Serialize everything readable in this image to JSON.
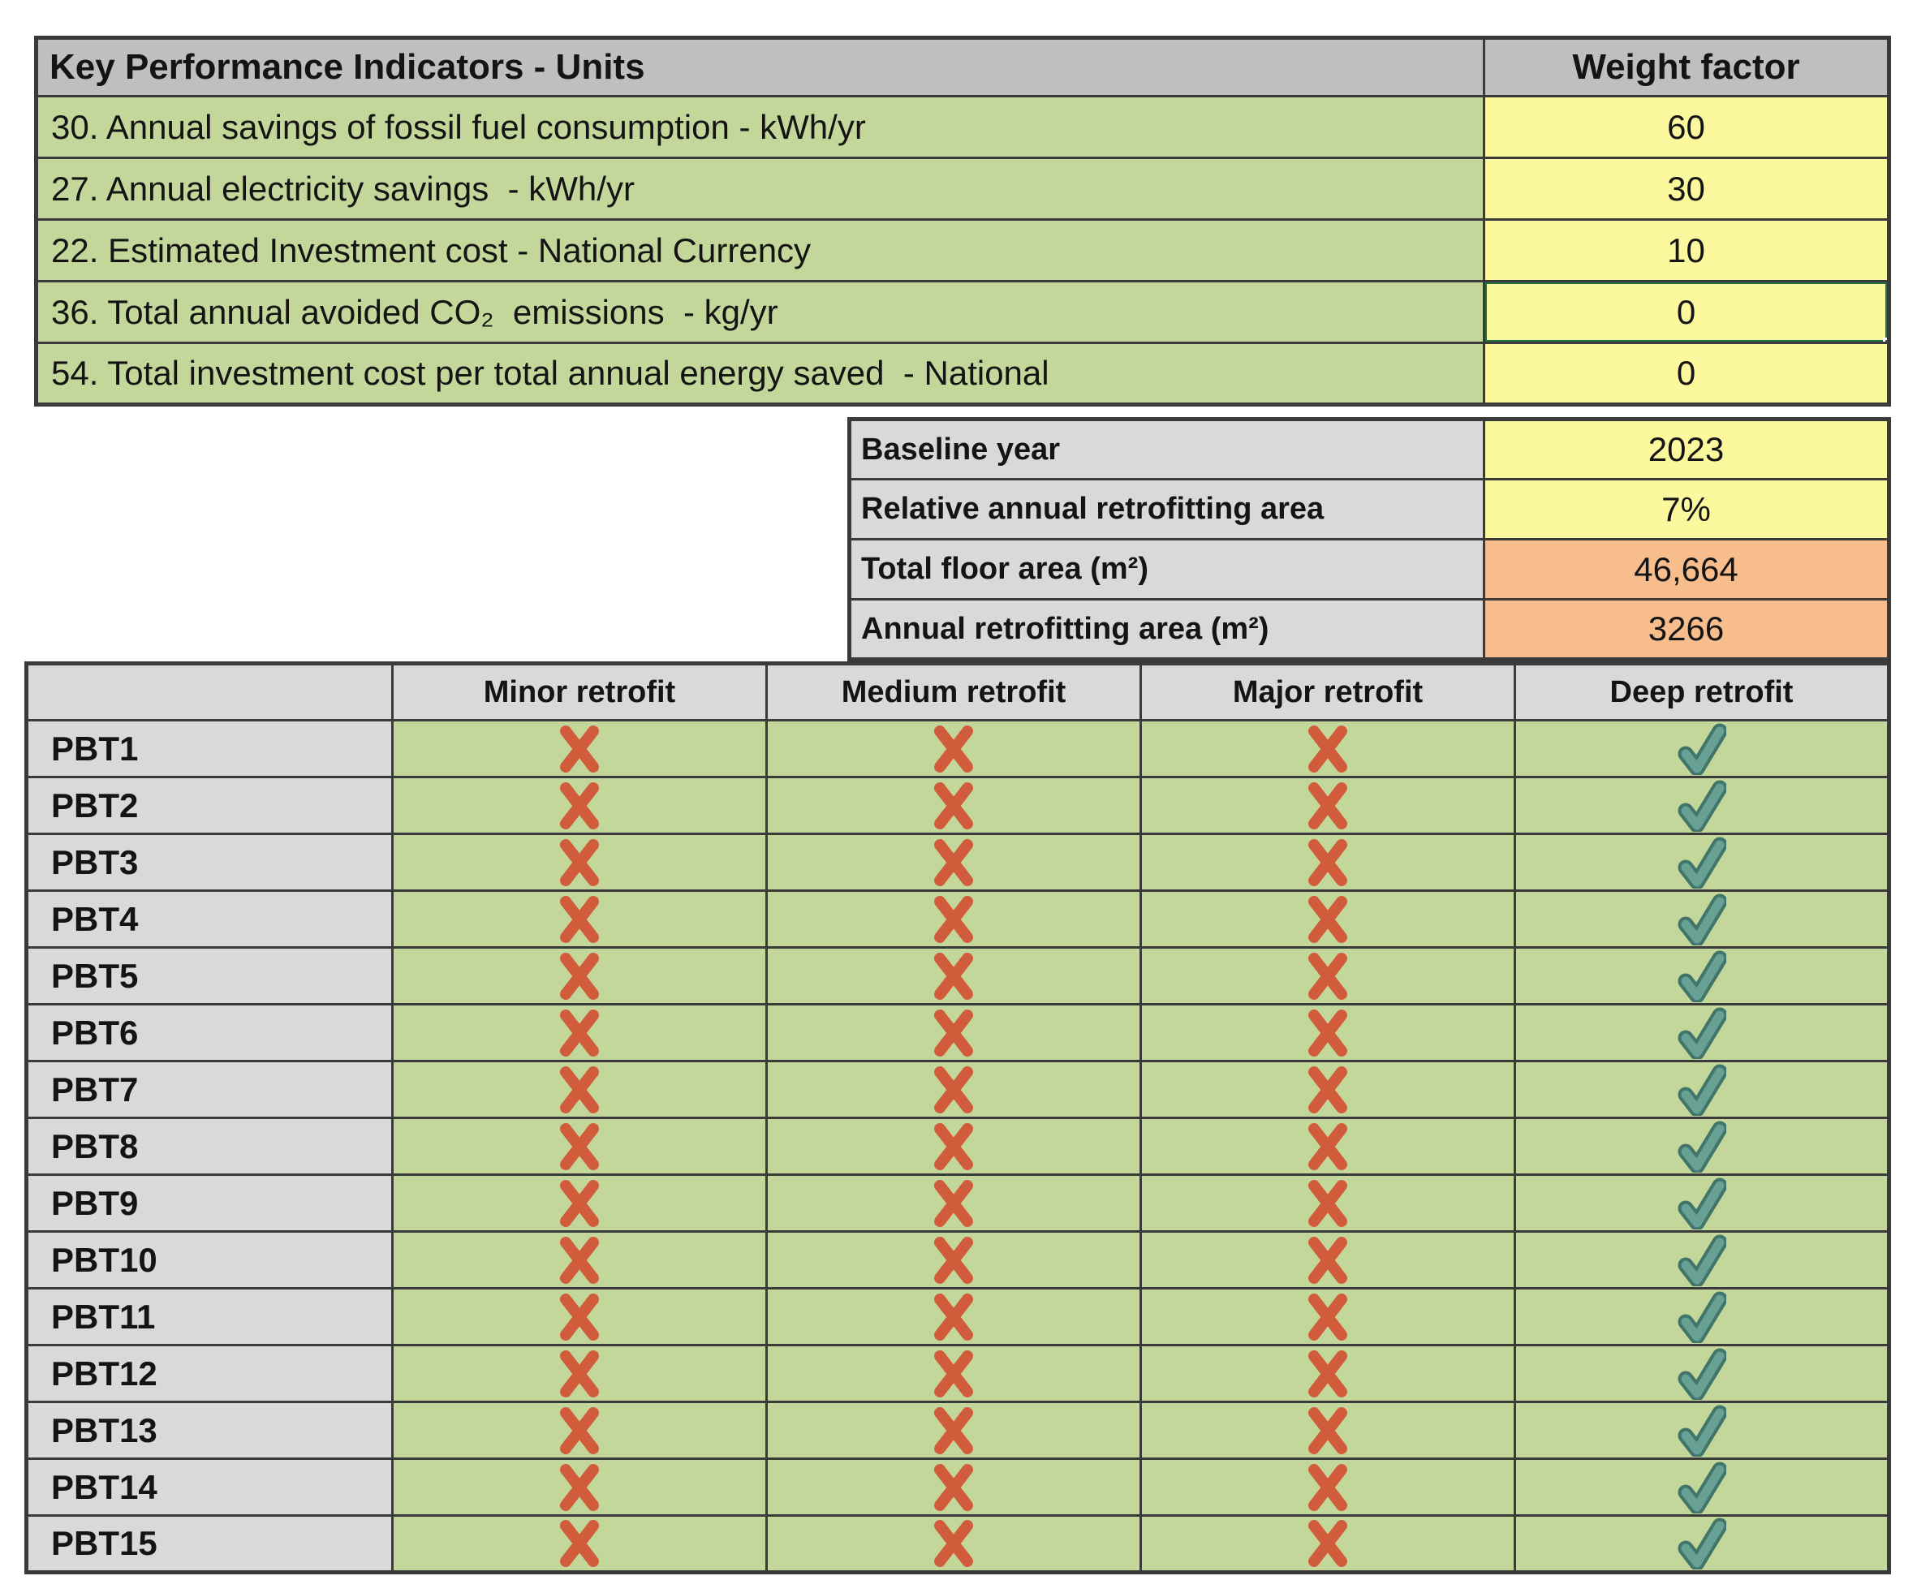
{
  "colors": {
    "header_gray": "#bfbfbf",
    "label_gray": "#d9d9d9",
    "cell_green": "#c4d79b",
    "cell_yellow": "#fbf89e",
    "cell_orange": "#f8bd8c",
    "grid_border": "#3a3a3a",
    "selection_green": "#1e7145",
    "cross_red": "#d15c3c",
    "check_teal": "#68a093",
    "check_teal_dark": "#41756a"
  },
  "kpi_table": {
    "title": "Key Performance Indicators - Units",
    "weight_header": "Weight factor",
    "rows": [
      {
        "label": "30. Annual savings of fossil fuel consumption - kWh/yr",
        "weight": "60",
        "selected": false
      },
      {
        "label": "27. Annual electricity savings  - kWh/yr",
        "weight": "30",
        "selected": false
      },
      {
        "label": "22. Estimated Investment cost - National Currency",
        "weight": "10",
        "selected": false
      },
      {
        "label": "36. Total annual avoided CO₂  emissions  - kg/yr",
        "weight": "0",
        "selected": true
      },
      {
        "label": "54. Total investment cost per total annual energy saved  - National",
        "weight": "0",
        "selected": false
      }
    ]
  },
  "params_table": {
    "rows": [
      {
        "label": "Baseline year",
        "value": "2023",
        "fill": "yellow"
      },
      {
        "label": "Relative annual retrofitting area",
        "value": "7%",
        "fill": "yellow"
      },
      {
        "label": "Total floor area (m²)",
        "value": "46,664",
        "fill": "orange"
      },
      {
        "label": "Annual retrofitting area (m²)",
        "value": "3266",
        "fill": "orange"
      }
    ]
  },
  "matrix_table": {
    "corner_label": "",
    "columns": [
      "Minor retrofit",
      "Medium retrofit",
      "Major retrofit",
      "Deep retrofit"
    ],
    "icons": {
      "cross": "cross-icon",
      "check": "check-icon"
    },
    "rows": [
      {
        "label": "PBT1",
        "cells": [
          "cross",
          "cross",
          "cross",
          "check"
        ]
      },
      {
        "label": "PBT2",
        "cells": [
          "cross",
          "cross",
          "cross",
          "check"
        ]
      },
      {
        "label": "PBT3",
        "cells": [
          "cross",
          "cross",
          "cross",
          "check"
        ]
      },
      {
        "label": "PBT4",
        "cells": [
          "cross",
          "cross",
          "cross",
          "check"
        ]
      },
      {
        "label": "PBT5",
        "cells": [
          "cross",
          "cross",
          "cross",
          "check"
        ]
      },
      {
        "label": "PBT6",
        "cells": [
          "cross",
          "cross",
          "cross",
          "check"
        ]
      },
      {
        "label": "PBT7",
        "cells": [
          "cross",
          "cross",
          "cross",
          "check"
        ]
      },
      {
        "label": "PBT8",
        "cells": [
          "cross",
          "cross",
          "cross",
          "check"
        ]
      },
      {
        "label": "PBT9",
        "cells": [
          "cross",
          "cross",
          "cross",
          "check"
        ]
      },
      {
        "label": "PBT10",
        "cells": [
          "cross",
          "cross",
          "cross",
          "check"
        ]
      },
      {
        "label": "PBT11",
        "cells": [
          "cross",
          "cross",
          "cross",
          "check"
        ]
      },
      {
        "label": "PBT12",
        "cells": [
          "cross",
          "cross",
          "cross",
          "check"
        ]
      },
      {
        "label": "PBT13",
        "cells": [
          "cross",
          "cross",
          "cross",
          "check"
        ]
      },
      {
        "label": "PBT14",
        "cells": [
          "cross",
          "cross",
          "cross",
          "check"
        ]
      },
      {
        "label": "PBT15",
        "cells": [
          "cross",
          "cross",
          "cross",
          "check"
        ]
      }
    ]
  }
}
